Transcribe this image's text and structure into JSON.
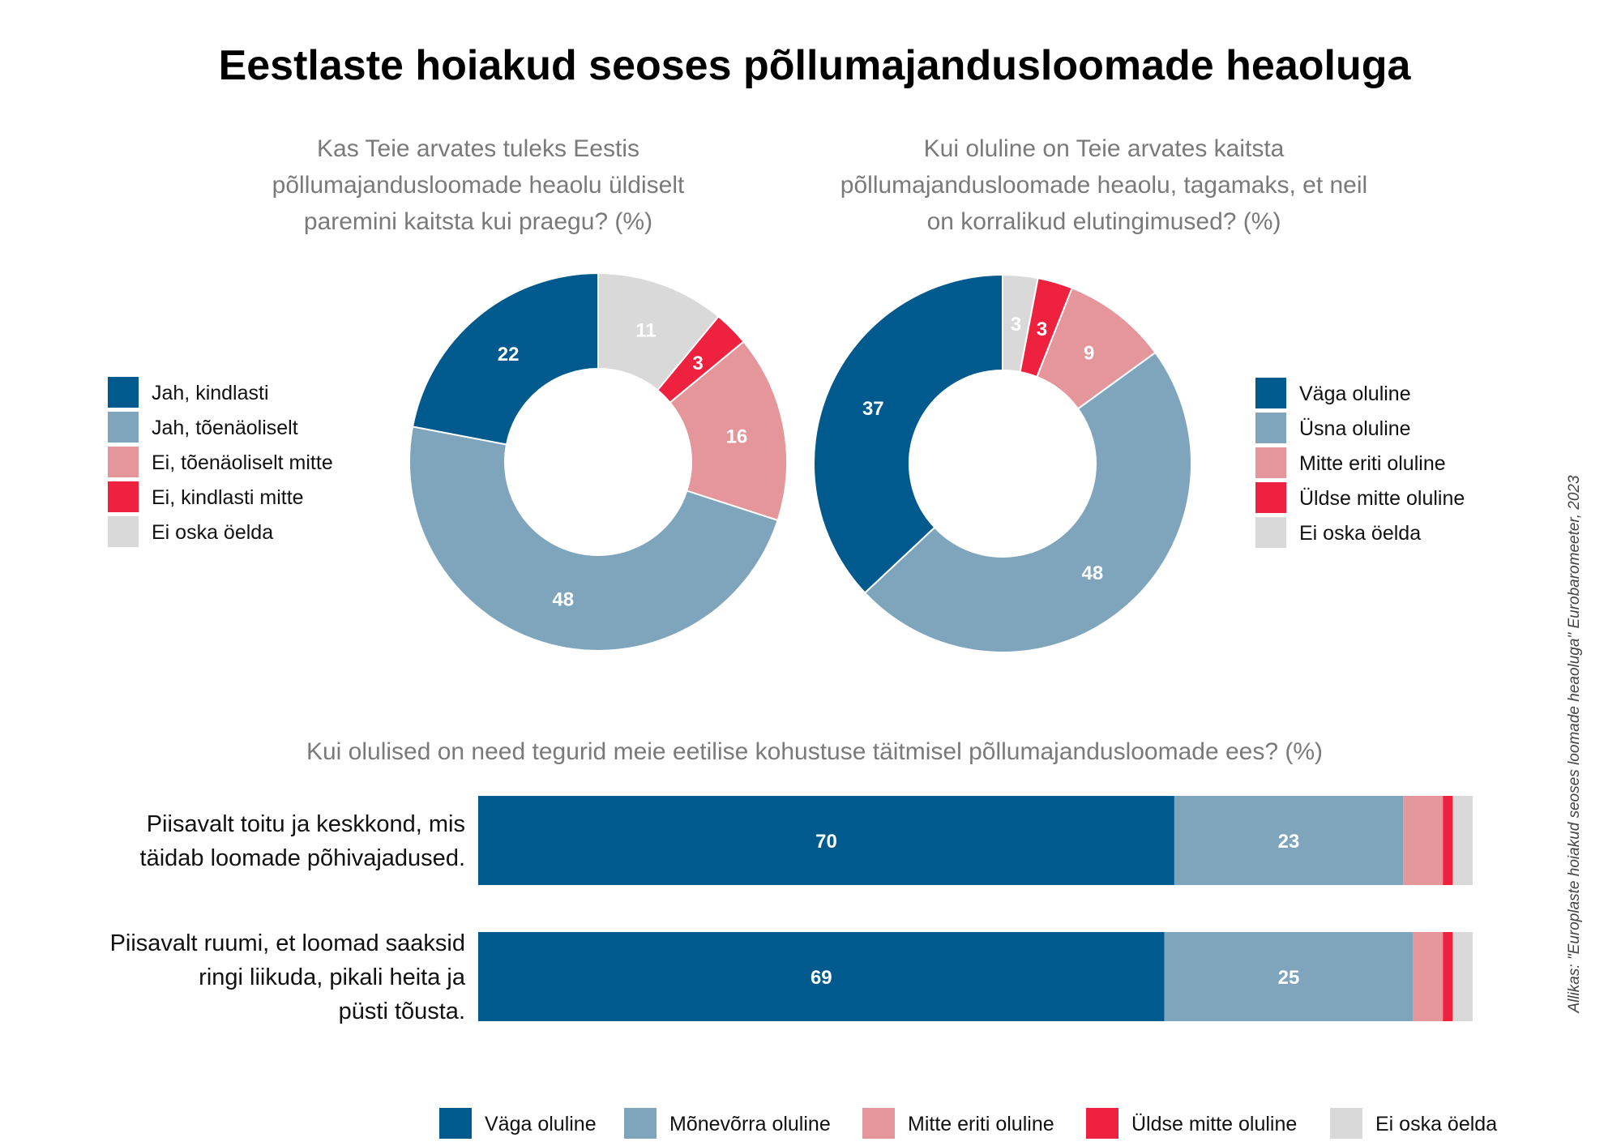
{
  "title": "Eestlaste hoiakud seoses põllumajandusloomade heaoluga",
  "source": "Allikas: \"Europlaste hoiakud seoses loomade heaoluga\" Eurobaromeeter, 2023",
  "colors": {
    "dark_blue": "#005a8e",
    "light_blue": "#7fa5bd",
    "pink": "#e4969b",
    "red": "#ee223f",
    "gray": "#d9d9d9"
  },
  "chart_data": [
    {
      "type": "pie",
      "donut": true,
      "title_lines": [
        "Kas Teie arvates tuleks Eestis",
        "põllumajandusloomade heaolu üldiselt",
        "paremini kaitsta kui praegu? (%)"
      ],
      "legend_placement": "left",
      "categories": [
        "Jah, kindlasti",
        "Jah, tõenäoliselt",
        "Ei, tõenäoliselt mitte",
        "Ei, kindlasti mitte",
        "Ei oska öelda"
      ],
      "values": [
        22,
        48,
        16,
        3,
        11
      ]
    },
    {
      "type": "pie",
      "donut": true,
      "title_lines": [
        "Kui oluline on Teie arvates kaitsta",
        "põllumajandusloomade heaolu, tagamaks, et neil",
        "on korralikud elutingimused? (%)"
      ],
      "legend_placement": "right",
      "categories": [
        "Väga oluline",
        "Üsna oluline",
        "Mitte eriti oluline",
        "Üldse mitte oluline",
        "Ei oska öelda"
      ],
      "values": [
        37,
        48,
        9,
        3,
        3
      ]
    },
    {
      "type": "bar",
      "stacked": true,
      "orientation": "horizontal",
      "title": "Kui olulised on need tegurid meie eetilise kohustuse täitmisel põllumajandusloomade ees? (%)",
      "legend_placement": "bottom",
      "categories": [
        [
          "Piisavalt toitu ja keskkond, mis",
          "täidab loomade põhivajadused."
        ],
        [
          "Piisavalt ruumi, et loomad saaksid",
          "ringi liikuda, pikali heita ja",
          "püsti tõusta."
        ]
      ],
      "series": [
        {
          "name": "Väga oluline",
          "values": [
            70,
            69
          ]
        },
        {
          "name": "Mõnevõrra oluline",
          "values": [
            23,
            25
          ]
        },
        {
          "name": "Mitte eriti oluline",
          "values": [
            4,
            3
          ]
        },
        {
          "name": "Üldse mitte oluline",
          "values": [
            1,
            1
          ]
        },
        {
          "name": "Ei oska öelda",
          "values": [
            2,
            2
          ]
        }
      ],
      "xlim": [
        0,
        100
      ]
    }
  ]
}
